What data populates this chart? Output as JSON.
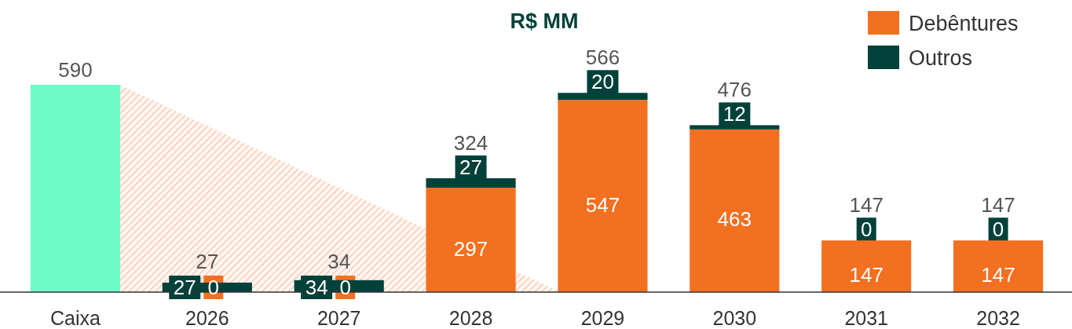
{
  "chart_data": {
    "type": "bar",
    "title": "R$ MM",
    "stacked": true,
    "categories": [
      "Caixa",
      "2026",
      "2027",
      "2028",
      "2029",
      "2030",
      "2031",
      "2032"
    ],
    "series": [
      {
        "color": "#6ffcc8",
        "values": [
          590,
          null,
          null,
          null,
          null,
          null,
          null,
          null
        ],
        "value_labels": [
          null,
          null,
          null,
          null,
          null,
          null,
          null,
          null
        ]
      },
      {
        "name": "Debêntures",
        "color": "#f37021",
        "values": [
          null,
          0,
          0,
          297,
          547,
          463,
          147,
          147
        ],
        "value_labels": [
          null,
          "0",
          "0",
          "297",
          "547",
          "463",
          "147",
          "147"
        ]
      },
      {
        "name": "Outros",
        "color": "#00413a",
        "values": [
          null,
          27,
          34,
          27,
          20,
          12,
          0,
          0
        ],
        "value_labels": [
          null,
          "27",
          "34",
          "27",
          "20",
          "12",
          "0",
          "0"
        ]
      }
    ],
    "totals": [
      "590",
      "27",
      "34",
      "324",
      "566",
      "476",
      "147",
      "147"
    ],
    "legend": "top right"
  }
}
